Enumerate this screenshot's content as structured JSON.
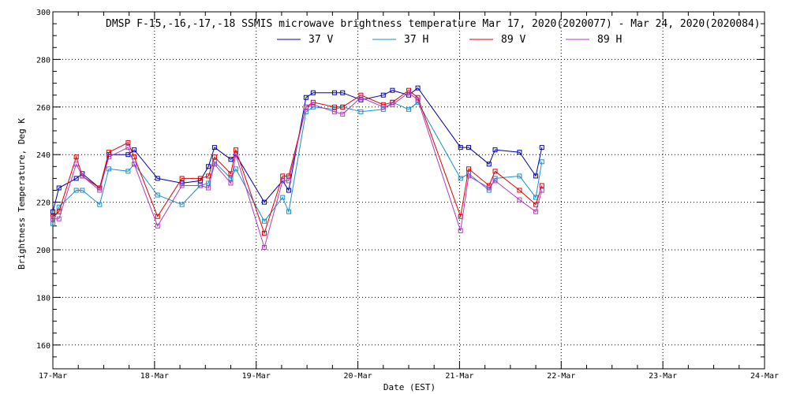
{
  "chart_data": {
    "type": "line",
    "title": "DMSP F-15,-16,-17,-18 SSMIS microwave brightness temperature Mar 17, 2020(2020077) - Mar 24, 2020(2020084)",
    "xlabel": "Date (EST)",
    "ylabel": "Brightness Temperature, Deg K",
    "x_unit": "days since 17-Mar",
    "xlim": [
      0,
      7
    ],
    "ylim": [
      150,
      300
    ],
    "y_ticks": [
      160,
      180,
      200,
      220,
      240,
      260,
      280,
      300
    ],
    "x_tick_labels": [
      "17-Mar",
      "18-Mar",
      "19-Mar",
      "20-Mar",
      "21-Mar",
      "22-Mar",
      "23-Mar",
      "24-Mar"
    ],
    "grid": true,
    "legend_position": "top-center",
    "series": [
      {
        "name": "37 V",
        "color": "#0000aa",
        "points": [
          [
            0.0,
            216
          ],
          [
            0.06,
            226
          ],
          [
            0.23,
            230
          ],
          [
            0.29,
            232
          ],
          [
            0.46,
            226
          ],
          [
            0.55,
            240
          ],
          [
            0.74,
            240
          ],
          [
            0.8,
            242
          ],
          [
            1.03,
            230
          ],
          [
            1.27,
            228
          ],
          [
            1.45,
            229
          ],
          [
            1.53,
            235
          ],
          [
            1.59,
            243
          ],
          [
            1.75,
            238
          ],
          [
            1.8,
            240
          ],
          [
            2.08,
            220
          ],
          [
            2.26,
            229
          ],
          [
            2.32,
            225
          ],
          [
            2.49,
            264
          ],
          [
            2.56,
            266
          ],
          [
            2.77,
            266
          ],
          [
            2.85,
            266
          ],
          [
            3.03,
            263
          ],
          [
            3.25,
            265
          ],
          [
            3.34,
            267
          ],
          [
            3.5,
            265
          ],
          [
            3.59,
            268
          ],
          [
            4.01,
            243
          ],
          [
            4.09,
            243
          ],
          [
            4.29,
            236
          ],
          [
            4.35,
            242
          ],
          [
            4.59,
            241
          ],
          [
            4.75,
            231
          ],
          [
            4.81,
            243
          ]
        ]
      },
      {
        "name": "37 H",
        "color": "#1a8fcf",
        "points": [
          [
            0.0,
            211
          ],
          [
            0.06,
            218
          ],
          [
            0.23,
            225
          ],
          [
            0.29,
            225
          ],
          [
            0.46,
            219
          ],
          [
            0.55,
            234
          ],
          [
            0.74,
            233
          ],
          [
            0.8,
            236
          ],
          [
            1.03,
            223
          ],
          [
            1.27,
            219
          ],
          [
            1.45,
            227
          ],
          [
            1.53,
            228
          ],
          [
            1.59,
            237
          ],
          [
            1.75,
            230
          ],
          [
            1.8,
            234
          ],
          [
            2.08,
            212
          ],
          [
            2.26,
            222
          ],
          [
            2.32,
            216
          ],
          [
            2.49,
            258
          ],
          [
            2.56,
            260
          ],
          [
            2.77,
            259
          ],
          [
            2.85,
            260
          ],
          [
            3.03,
            258
          ],
          [
            3.25,
            259
          ],
          [
            3.34,
            262
          ],
          [
            3.5,
            259
          ],
          [
            3.59,
            262
          ],
          [
            4.01,
            230
          ],
          [
            4.09,
            232
          ],
          [
            4.29,
            225
          ],
          [
            4.35,
            230
          ],
          [
            4.59,
            231
          ],
          [
            4.75,
            222
          ],
          [
            4.81,
            237
          ]
        ]
      },
      {
        "name": "89 V",
        "color": "#dd0000",
        "points": [
          [
            0.0,
            214
          ],
          [
            0.06,
            216
          ],
          [
            0.23,
            239
          ],
          [
            0.29,
            231
          ],
          [
            0.46,
            226
          ],
          [
            0.55,
            241
          ],
          [
            0.74,
            245
          ],
          [
            0.8,
            239
          ],
          [
            1.03,
            214
          ],
          [
            1.27,
            230
          ],
          [
            1.45,
            230
          ],
          [
            1.53,
            231
          ],
          [
            1.59,
            239
          ],
          [
            1.75,
            232
          ],
          [
            1.8,
            242
          ],
          [
            2.08,
            207
          ],
          [
            2.26,
            231
          ],
          [
            2.32,
            231
          ],
          [
            2.49,
            260
          ],
          [
            2.56,
            262
          ],
          [
            2.77,
            260
          ],
          [
            2.85,
            260
          ],
          [
            3.03,
            265
          ],
          [
            3.25,
            261
          ],
          [
            3.34,
            262
          ],
          [
            3.5,
            267
          ],
          [
            3.59,
            264
          ],
          [
            4.01,
            214
          ],
          [
            4.09,
            234
          ],
          [
            4.29,
            227
          ],
          [
            4.35,
            233
          ],
          [
            4.59,
            225
          ],
          [
            4.75,
            219
          ],
          [
            4.81,
            227
          ]
        ]
      },
      {
        "name": "89 H",
        "color": "#b03ac0",
        "points": [
          [
            0.0,
            213
          ],
          [
            0.06,
            213
          ],
          [
            0.23,
            236
          ],
          [
            0.29,
            231
          ],
          [
            0.46,
            225
          ],
          [
            0.55,
            239
          ],
          [
            0.74,
            243
          ],
          [
            0.8,
            236
          ],
          [
            1.03,
            210
          ],
          [
            1.27,
            227
          ],
          [
            1.45,
            227
          ],
          [
            1.53,
            226
          ],
          [
            1.59,
            236
          ],
          [
            1.75,
            228
          ],
          [
            1.8,
            240
          ],
          [
            2.08,
            201
          ],
          [
            2.26,
            229
          ],
          [
            2.32,
            229
          ],
          [
            2.49,
            260
          ],
          [
            2.56,
            261
          ],
          [
            2.77,
            258
          ],
          [
            2.85,
            257
          ],
          [
            3.03,
            264
          ],
          [
            3.25,
            260
          ],
          [
            3.34,
            261
          ],
          [
            3.5,
            266
          ],
          [
            3.59,
            263
          ],
          [
            4.01,
            208
          ],
          [
            4.09,
            231
          ],
          [
            4.29,
            226
          ],
          [
            4.35,
            229
          ],
          [
            4.59,
            221
          ],
          [
            4.75,
            216
          ],
          [
            4.81,
            225
          ]
        ]
      }
    ]
  }
}
